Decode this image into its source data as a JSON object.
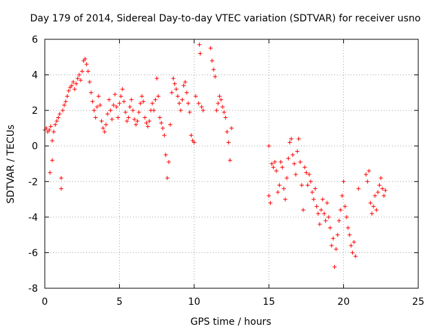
{
  "chart_data": {
    "type": "scatter",
    "title": "Day 179 of 2014, Sidereal Day-to-day VTEC variation (SDTVAR) for receiver usno",
    "xlabel": "GPS time / hours",
    "ylabel": "SDTVAR / TECUs",
    "xlim": [
      0,
      25
    ],
    "ylim": [
      -8,
      6
    ],
    "xticks": [
      "0",
      "5",
      "10",
      "15",
      "20",
      "25"
    ],
    "yticks": [
      "-8",
      "-6",
      "-4",
      "-2",
      "0",
      "2",
      "4",
      "6"
    ],
    "grid": true,
    "marker": "+",
    "color": "#ff0000",
    "series": [
      {
        "name": "SDTVAR",
        "x": [
          0.0,
          0.1,
          0.2,
          0.3,
          0.35,
          0.4,
          0.5,
          0.5,
          0.6,
          0.7,
          0.8,
          0.9,
          1.0,
          1.1,
          1.1,
          1.2,
          1.3,
          1.4,
          1.5,
          1.6,
          1.7,
          1.8,
          1.9,
          2.0,
          2.1,
          2.2,
          2.3,
          2.4,
          2.5,
          2.6,
          2.7,
          2.8,
          2.9,
          3.0,
          3.1,
          3.2,
          3.3,
          3.4,
          3.5,
          3.6,
          3.7,
          3.8,
          3.9,
          4.0,
          4.1,
          4.2,
          4.3,
          4.4,
          4.5,
          4.6,
          4.7,
          4.8,
          4.9,
          5.0,
          5.1,
          5.2,
          5.3,
          5.4,
          5.5,
          5.6,
          5.7,
          5.8,
          5.9,
          6.0,
          6.1,
          6.2,
          6.3,
          6.4,
          6.5,
          6.6,
          6.7,
          6.8,
          6.9,
          7.0,
          7.1,
          7.2,
          7.3,
          7.4,
          7.5,
          7.6,
          7.7,
          7.8,
          7.9,
          8.0,
          8.1,
          8.2,
          8.3,
          8.4,
          8.5,
          8.6,
          8.7,
          8.8,
          8.9,
          9.0,
          9.1,
          9.2,
          9.3,
          9.4,
          9.5,
          9.6,
          9.7,
          9.8,
          9.9,
          10.0,
          10.1,
          10.3,
          10.35,
          10.4,
          10.5,
          10.6,
          11.1,
          11.2,
          11.3,
          11.4,
          11.5,
          11.6,
          11.7,
          11.8,
          11.9,
          12.0,
          12.1,
          12.2,
          12.3,
          12.4,
          12.5,
          15.0,
          15.0,
          15.1,
          15.2,
          15.3,
          15.4,
          15.5,
          15.6,
          15.7,
          15.8,
          15.9,
          16.0,
          16.1,
          16.2,
          16.3,
          16.4,
          16.5,
          16.6,
          16.7,
          16.8,
          16.9,
          17.0,
          17.1,
          17.2,
          17.3,
          17.4,
          17.5,
          17.6,
          17.7,
          17.8,
          17.9,
          18.0,
          18.1,
          18.2,
          18.3,
          18.4,
          18.5,
          18.6,
          18.7,
          18.8,
          18.9,
          19.0,
          19.1,
          19.2,
          19.3,
          19.4,
          19.5,
          19.6,
          19.7,
          19.8,
          19.9,
          20.0,
          20.1,
          20.2,
          20.3,
          20.4,
          20.5,
          20.6,
          20.7,
          20.8,
          21.0,
          21.5,
          21.6,
          21.7,
          21.8,
          21.9,
          22.0,
          22.1,
          22.2,
          22.3,
          22.4,
          22.5,
          22.6,
          22.7,
          22.8
        ],
        "y": [
          0.9,
          1.0,
          0.8,
          0.9,
          -1.5,
          1.1,
          0.3,
          -0.8,
          0.8,
          1.2,
          1.4,
          1.6,
          1.8,
          -1.8,
          -2.4,
          2.0,
          2.3,
          2.5,
          2.8,
          3.1,
          3.3,
          3.4,
          3.6,
          3.2,
          3.5,
          3.8,
          4.0,
          3.7,
          4.2,
          4.8,
          4.9,
          4.6,
          4.2,
          3.6,
          3.0,
          2.5,
          2.0,
          1.6,
          2.2,
          2.8,
          2.3,
          1.4,
          1.0,
          0.8,
          1.2,
          1.8,
          2.6,
          2.0,
          1.5,
          2.3,
          2.9,
          2.2,
          1.6,
          2.4,
          2.8,
          3.2,
          2.5,
          1.9,
          1.4,
          1.6,
          2.2,
          2.6,
          2.0,
          1.5,
          1.2,
          1.4,
          1.9,
          2.4,
          2.8,
          2.5,
          1.6,
          1.3,
          1.1,
          1.4,
          2.0,
          2.4,
          2.0,
          2.6,
          3.8,
          2.8,
          1.6,
          1.3,
          1.0,
          0.6,
          -0.5,
          -1.8,
          -0.9,
          1.2,
          3.0,
          3.8,
          3.5,
          3.2,
          2.8,
          2.4,
          2.0,
          2.6,
          3.4,
          3.6,
          3.0,
          2.4,
          1.9,
          0.6,
          0.3,
          0.2,
          2.8,
          2.4,
          5.7,
          5.2,
          2.2,
          2.0,
          5.5,
          4.8,
          4.3,
          3.9,
          2.0,
          2.4,
          2.8,
          2.6,
          2.2,
          1.9,
          1.6,
          0.8,
          0.2,
          -0.8,
          1.0,
          0.0,
          -2.8,
          -3.2,
          -1.0,
          -1.2,
          -0.9,
          -1.4,
          -2.6,
          -2.2,
          -0.9,
          -1.2,
          -2.4,
          -3.0,
          -1.8,
          -0.7,
          0.2,
          0.4,
          -0.5,
          -1.0,
          -1.6,
          -0.3,
          0.4,
          -0.9,
          -2.2,
          -3.6,
          -1.2,
          -1.5,
          -2.2,
          -1.6,
          -2.0,
          -2.6,
          -3.0,
          -2.4,
          -3.4,
          -3.8,
          -4.4,
          -3.6,
          -3.0,
          -3.8,
          -4.2,
          -3.2,
          -4.0,
          -4.6,
          -5.6,
          -5.2,
          -6.8,
          -5.8,
          -5.0,
          -4.2,
          -3.6,
          -2.8,
          -2.0,
          -3.4,
          -4.0,
          -4.6,
          -5.0,
          -5.6,
          -6.0,
          -5.4,
          -6.2,
          -2.4,
          -1.6,
          -2.0,
          -1.4,
          -3.2,
          -3.8,
          -3.4,
          -2.8,
          -3.6,
          -2.6,
          -2.2,
          -1.8,
          -2.4,
          -2.8,
          -2.5
        ]
      }
    ]
  }
}
